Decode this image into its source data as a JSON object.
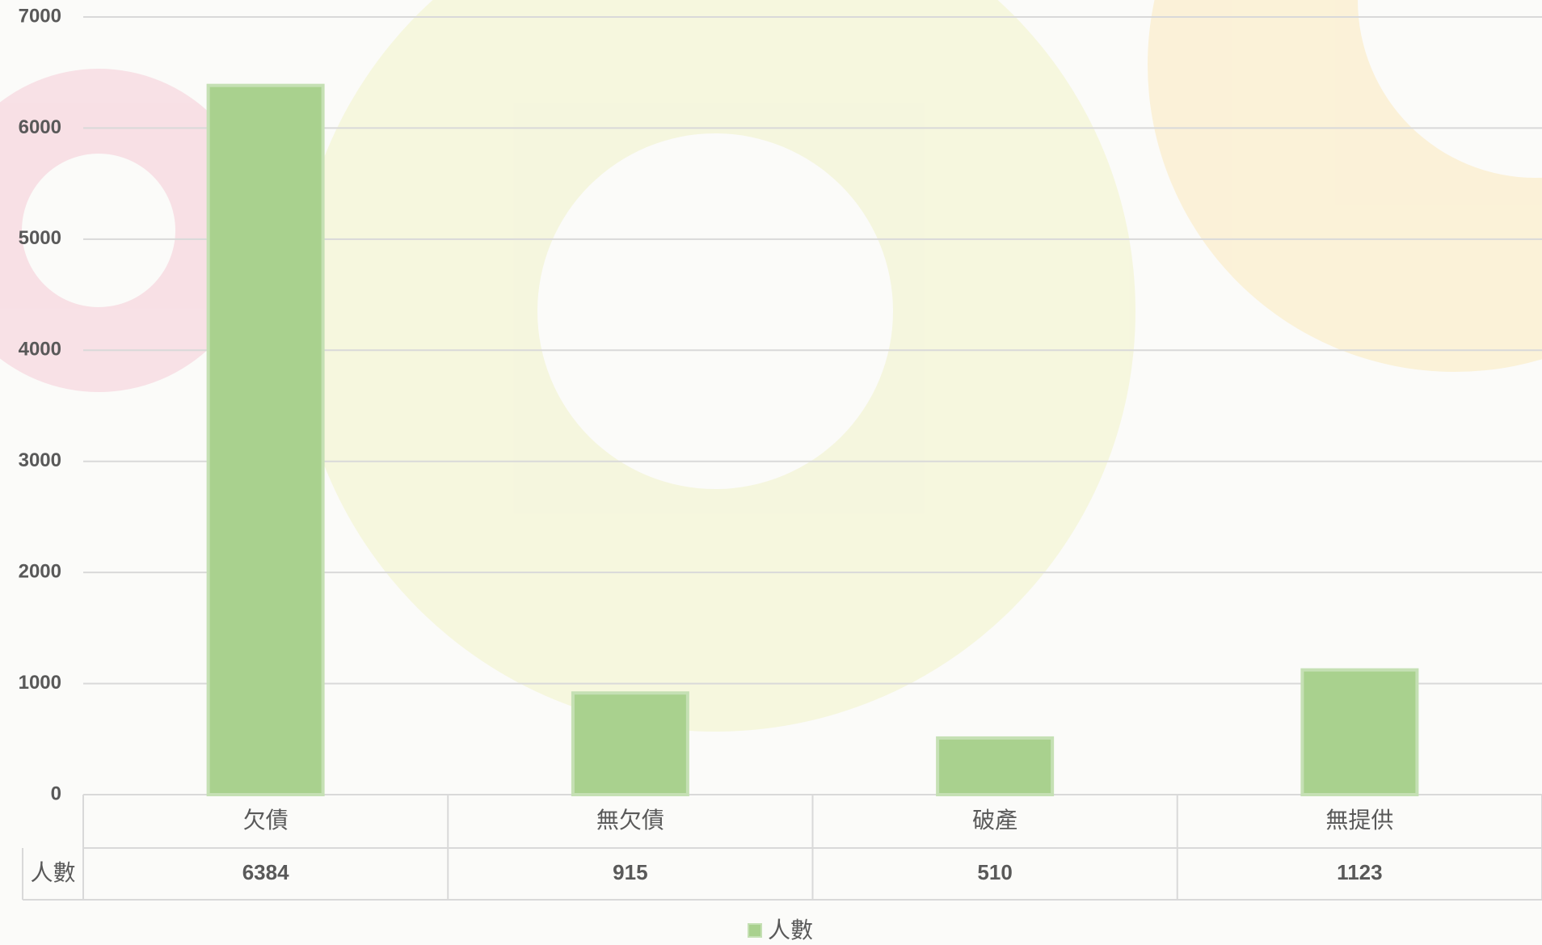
{
  "chart_data": {
    "type": "bar",
    "categories": [
      "欠債",
      "無欠債",
      "破產",
      "無提供"
    ],
    "series": [
      {
        "name": "人數",
        "color": "#a9d18e",
        "values": [
          6384,
          915,
          510,
          1123
        ]
      }
    ],
    "ylim": [
      0,
      7000
    ],
    "yticks": [
      0,
      1000,
      2000,
      3000,
      4000,
      5000,
      6000,
      7000
    ],
    "grid": true
  }
}
